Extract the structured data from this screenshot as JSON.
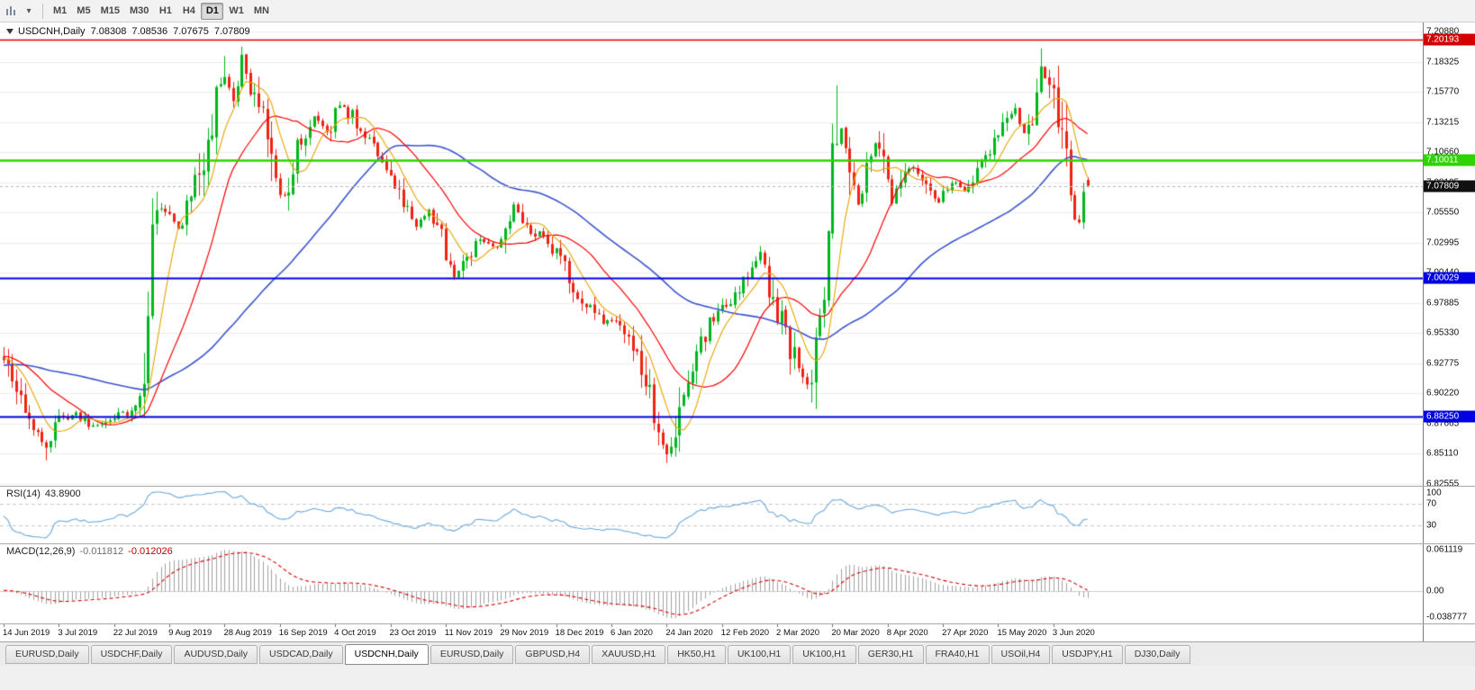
{
  "toolbar": {
    "timeframes": [
      "M1",
      "M5",
      "M15",
      "M30",
      "H1",
      "H4",
      "D1",
      "W1",
      "MN"
    ],
    "active_timeframe": "D1"
  },
  "main_chart": {
    "symbol": "USDCNH,Daily",
    "quote": {
      "open": "7.08308",
      "high": "7.08536",
      "low": "7.07675",
      "close": "7.07809"
    },
    "price_scale_ticks": [
      "7.20880",
      "7.18325",
      "7.15770",
      "7.13215",
      "7.10660",
      "7.08105",
      "7.05550",
      "7.02995",
      "7.00440",
      "6.97885",
      "6.95330",
      "6.92775",
      "6.90220",
      "6.87665",
      "6.85110",
      "6.82555"
    ],
    "levels": [
      {
        "label": "7.20193",
        "price": 7.20193,
        "color": "#d40000",
        "width": 1.4
      },
      {
        "label": "7.10011",
        "price": 7.10011,
        "color": "#2fd300",
        "width": 2.4
      },
      {
        "label": "7.00029",
        "price": 7.00029,
        "color": "#0000e1",
        "width": 2
      },
      {
        "label": "6.88250",
        "price": 6.8825,
        "color": "#0000e1",
        "width": 2
      }
    ],
    "current_price": {
      "label": "7.07809",
      "price": 7.07809,
      "badge_color": "#111111"
    }
  },
  "rsi_panel": {
    "name": "RSI(14)",
    "value": "43.8900",
    "line_color": "#6aa9dd",
    "guide_levels": [
      70,
      30
    ],
    "ticks": [
      {
        "label": "100",
        "value": 100
      },
      {
        "label": "70",
        "value": 70
      },
      {
        "label": "30",
        "value": 30
      }
    ]
  },
  "macd_panel": {
    "name": "MACD(12,26,9)",
    "macd_value": "-0.011812",
    "signal_value": "-0.012026",
    "histogram_color": "#a2a2a2",
    "signal_color": "#d90000",
    "ticks": [
      {
        "label": "0.061119",
        "value": 0.061119
      },
      {
        "label": "0.00",
        "value": 0
      },
      {
        "label": "-0.038777",
        "value": -0.038777
      }
    ]
  },
  "time_axis": {
    "labels": [
      "14 Jun 2019",
      "3 Jul 2019",
      "22 Jul 2019",
      "9 Aug 2019",
      "28 Aug 2019",
      "16 Sep 2019",
      "4 Oct 2019",
      "23 Oct 2019",
      "11 Nov 2019",
      "29 Nov 2019",
      "18 Dec 2019",
      "6 Jan 2020",
      "24 Jan 2020",
      "12 Feb 2020",
      "2 Mar 2020",
      "20 Mar 2020",
      "8 Apr 2020",
      "27 Apr 2020",
      "15 May 2020",
      "3 Jun 2020"
    ]
  },
  "tabs": {
    "active_index": 4,
    "items": [
      "EURUSD,Daily",
      "USDCHF,Daily",
      "AUDUSD,Daily",
      "USDCAD,Daily",
      "USDCNH,Daily",
      "EURUSD,Daily",
      "GBPUSD,H4",
      "XAUUSD,H1",
      "HK50,H1",
      "UK100,H1",
      "UK100,H1",
      "GER30,H1",
      "FRA40,H1",
      "USOil,H4",
      "USDJPY,H1",
      "DJ30,Daily"
    ],
    "active_label": "USDCNH,Daily"
  },
  "chart_data": {
    "type": "candlestick",
    "symbol": "USDCNH",
    "timeframe": "Daily",
    "price_range": {
      "min": 6.82555,
      "max": 7.2088
    },
    "candle_count": 256,
    "candles_per_label": 13,
    "bull_color": "#00b61e",
    "bear_color": "#ef2214",
    "last_candle": {
      "open": 7.08308,
      "high": 7.08536,
      "low": 7.07675,
      "close": 7.07809
    },
    "horizontal_lines": [
      7.20193,
      7.10011,
      7.00029,
      6.8825
    ],
    "moving_averages": [
      {
        "period": 8,
        "color": "#e8a400",
        "width": 1.1
      },
      {
        "period": 20,
        "color": "#ff0000",
        "width": 1.2
      },
      {
        "period": 58,
        "color": "#3b55cf",
        "width": 1.6
      }
    ],
    "indicators": {
      "rsi": {
        "period": 14,
        "current": 43.89
      },
      "macd": {
        "fast": 12,
        "slow": 26,
        "signal": 9,
        "current_macd": -0.011812,
        "current_signal": -0.012026
      }
    },
    "price_anchors": [
      [
        -60,
        6.895
      ],
      [
        -40,
        6.925
      ],
      [
        -20,
        6.935
      ],
      [
        0,
        6.932
      ],
      [
        3,
        6.902
      ],
      [
        6,
        6.874
      ],
      [
        10,
        6.858
      ],
      [
        13,
        6.878
      ],
      [
        17,
        6.885
      ],
      [
        21,
        6.873
      ],
      [
        26,
        6.882
      ],
      [
        30,
        6.888
      ],
      [
        33,
        6.902
      ],
      [
        35,
        7.024
      ],
      [
        37,
        7.058
      ],
      [
        39,
        7.056
      ],
      [
        41,
        7.04
      ],
      [
        44,
        7.066
      ],
      [
        47,
        7.098
      ],
      [
        50,
        7.158
      ],
      [
        52,
        7.172
      ],
      [
        54,
        7.148
      ],
      [
        56,
        7.186
      ],
      [
        58,
        7.166
      ],
      [
        61,
        7.138
      ],
      [
        63,
        7.112
      ],
      [
        65,
        7.062
      ],
      [
        67,
        7.082
      ],
      [
        70,
        7.118
      ],
      [
        73,
        7.138
      ],
      [
        76,
        7.122
      ],
      [
        79,
        7.148
      ],
      [
        82,
        7.136
      ],
      [
        85,
        7.12
      ],
      [
        88,
        7.104
      ],
      [
        91,
        7.086
      ],
      [
        94,
        7.066
      ],
      [
        97,
        7.046
      ],
      [
        100,
        7.056
      ],
      [
        103,
        7.032
      ],
      [
        106,
        7.002
      ],
      [
        109,
        7.016
      ],
      [
        112,
        7.032
      ],
      [
        115,
        7.026
      ],
      [
        118,
        7.036
      ],
      [
        120,
        7.062
      ],
      [
        122,
        7.042
      ],
      [
        126,
        7.036
      ],
      [
        130,
        7.022
      ],
      [
        134,
        6.992
      ],
      [
        138,
        6.976
      ],
      [
        141,
        6.962
      ],
      [
        144,
        6.961
      ],
      [
        147,
        6.946
      ],
      [
        150,
        6.922
      ],
      [
        152,
        6.896
      ],
      [
        154,
        6.872
      ],
      [
        156,
        6.85
      ],
      [
        158,
        6.868
      ],
      [
        160,
        6.912
      ],
      [
        163,
        6.938
      ],
      [
        166,
        6.962
      ],
      [
        169,
        6.976
      ],
      [
        172,
        6.986
      ],
      [
        175,
        7.002
      ],
      [
        178,
        7.022
      ],
      [
        180,
        6.996
      ],
      [
        183,
        6.962
      ],
      [
        186,
        6.932
      ],
      [
        189,
        6.906
      ],
      [
        191,
        6.932
      ],
      [
        193,
        6.992
      ],
      [
        195,
        7.092
      ],
      [
        197,
        7.126
      ],
      [
        199,
        7.092
      ],
      [
        201,
        7.062
      ],
      [
        203,
        7.096
      ],
      [
        205,
        7.116
      ],
      [
        207,
        7.092
      ],
      [
        209,
        7.066
      ],
      [
        211,
        7.086
      ],
      [
        214,
        7.096
      ],
      [
        217,
        7.076
      ],
      [
        220,
        7.064
      ],
      [
        223,
        7.082
      ],
      [
        226,
        7.072
      ],
      [
        229,
        7.096
      ],
      [
        232,
        7.106
      ],
      [
        235,
        7.126
      ],
      [
        238,
        7.142
      ],
      [
        240,
        7.122
      ],
      [
        242,
        7.138
      ],
      [
        244,
        7.176
      ],
      [
        246,
        7.164
      ],
      [
        248,
        7.13
      ],
      [
        250,
        7.092
      ],
      [
        251,
        7.058
      ],
      [
        253,
        7.048
      ],
      [
        254,
        7.075
      ],
      [
        255,
        7.078
      ]
    ],
    "wick_overrides": [
      {
        "index": 10,
        "low": 6.8455
      },
      {
        "index": 52,
        "high": 7.188
      },
      {
        "index": 56,
        "high": 7.196
      },
      {
        "index": 156,
        "low": 6.8435
      },
      {
        "index": 196,
        "high": 7.163
      },
      {
        "index": 244,
        "high": 7.1945
      }
    ]
  }
}
